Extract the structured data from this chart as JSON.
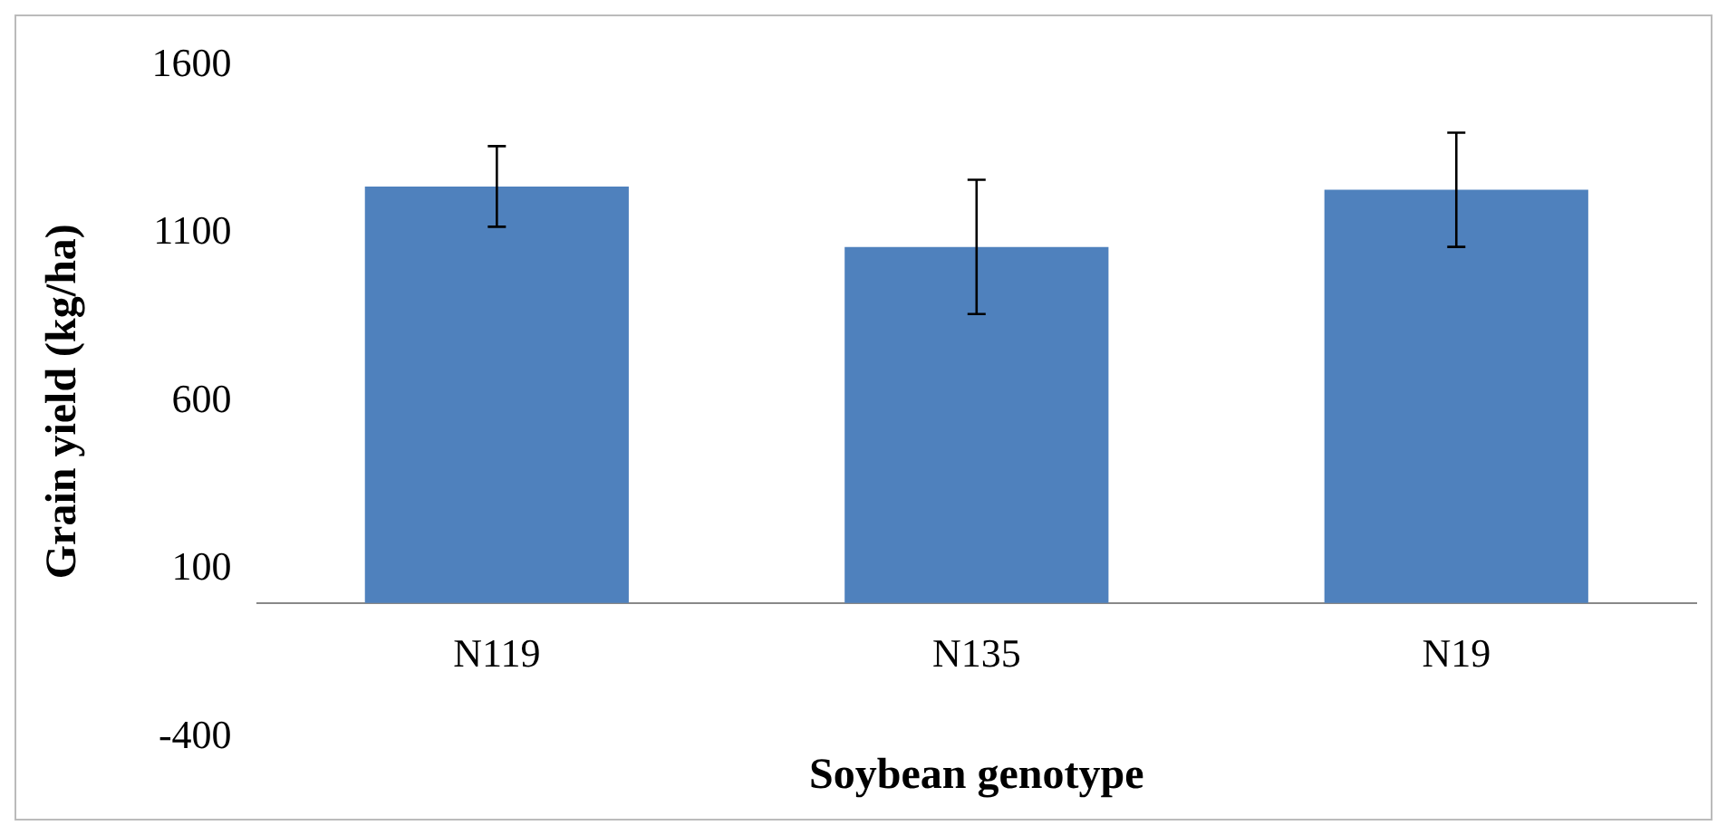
{
  "chart_data": {
    "type": "bar",
    "xlabel": "Soybean genotype",
    "ylabel": "Grain yield (kg/ha)",
    "categories": [
      "N119",
      "N135",
      "N19"
    ],
    "values": [
      1240,
      1060,
      1230
    ],
    "color": "#4f81bd",
    "errors": [
      120,
      200,
      170
    ],
    "ylim": [
      -400,
      1600
    ],
    "yticks": [
      -400,
      100,
      600,
      1100,
      1600
    ],
    "grid": false
  }
}
